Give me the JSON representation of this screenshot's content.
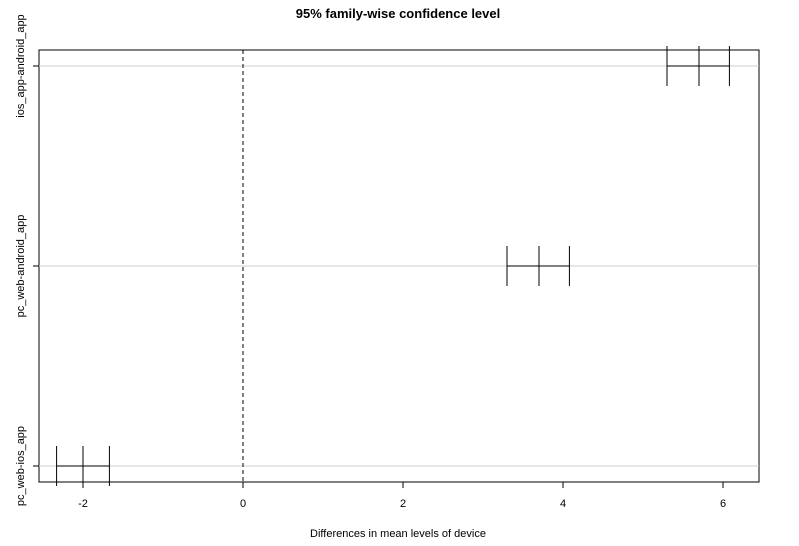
{
  "chart_data": {
    "type": "interval",
    "title": "95% family-wise confidence level",
    "xlabel": "Differences in mean levels of device",
    "ylabel": "",
    "xlim": [
      -2.55,
      6.45
    ],
    "xticks": [
      -2,
      0,
      2,
      4,
      6
    ],
    "reference_line": 0,
    "grid": "horizontal",
    "comparisons": [
      {
        "label": "ios_app-android_app",
        "lower": 5.3,
        "estimate": 5.7,
        "upper": 6.08
      },
      {
        "label": "pc_web-android_app",
        "lower": 3.3,
        "estimate": 3.7,
        "upper": 4.08
      },
      {
        "label": "pc_web-ios_app",
        "lower": -2.33,
        "estimate": -2.0,
        "upper": -1.67
      }
    ]
  }
}
